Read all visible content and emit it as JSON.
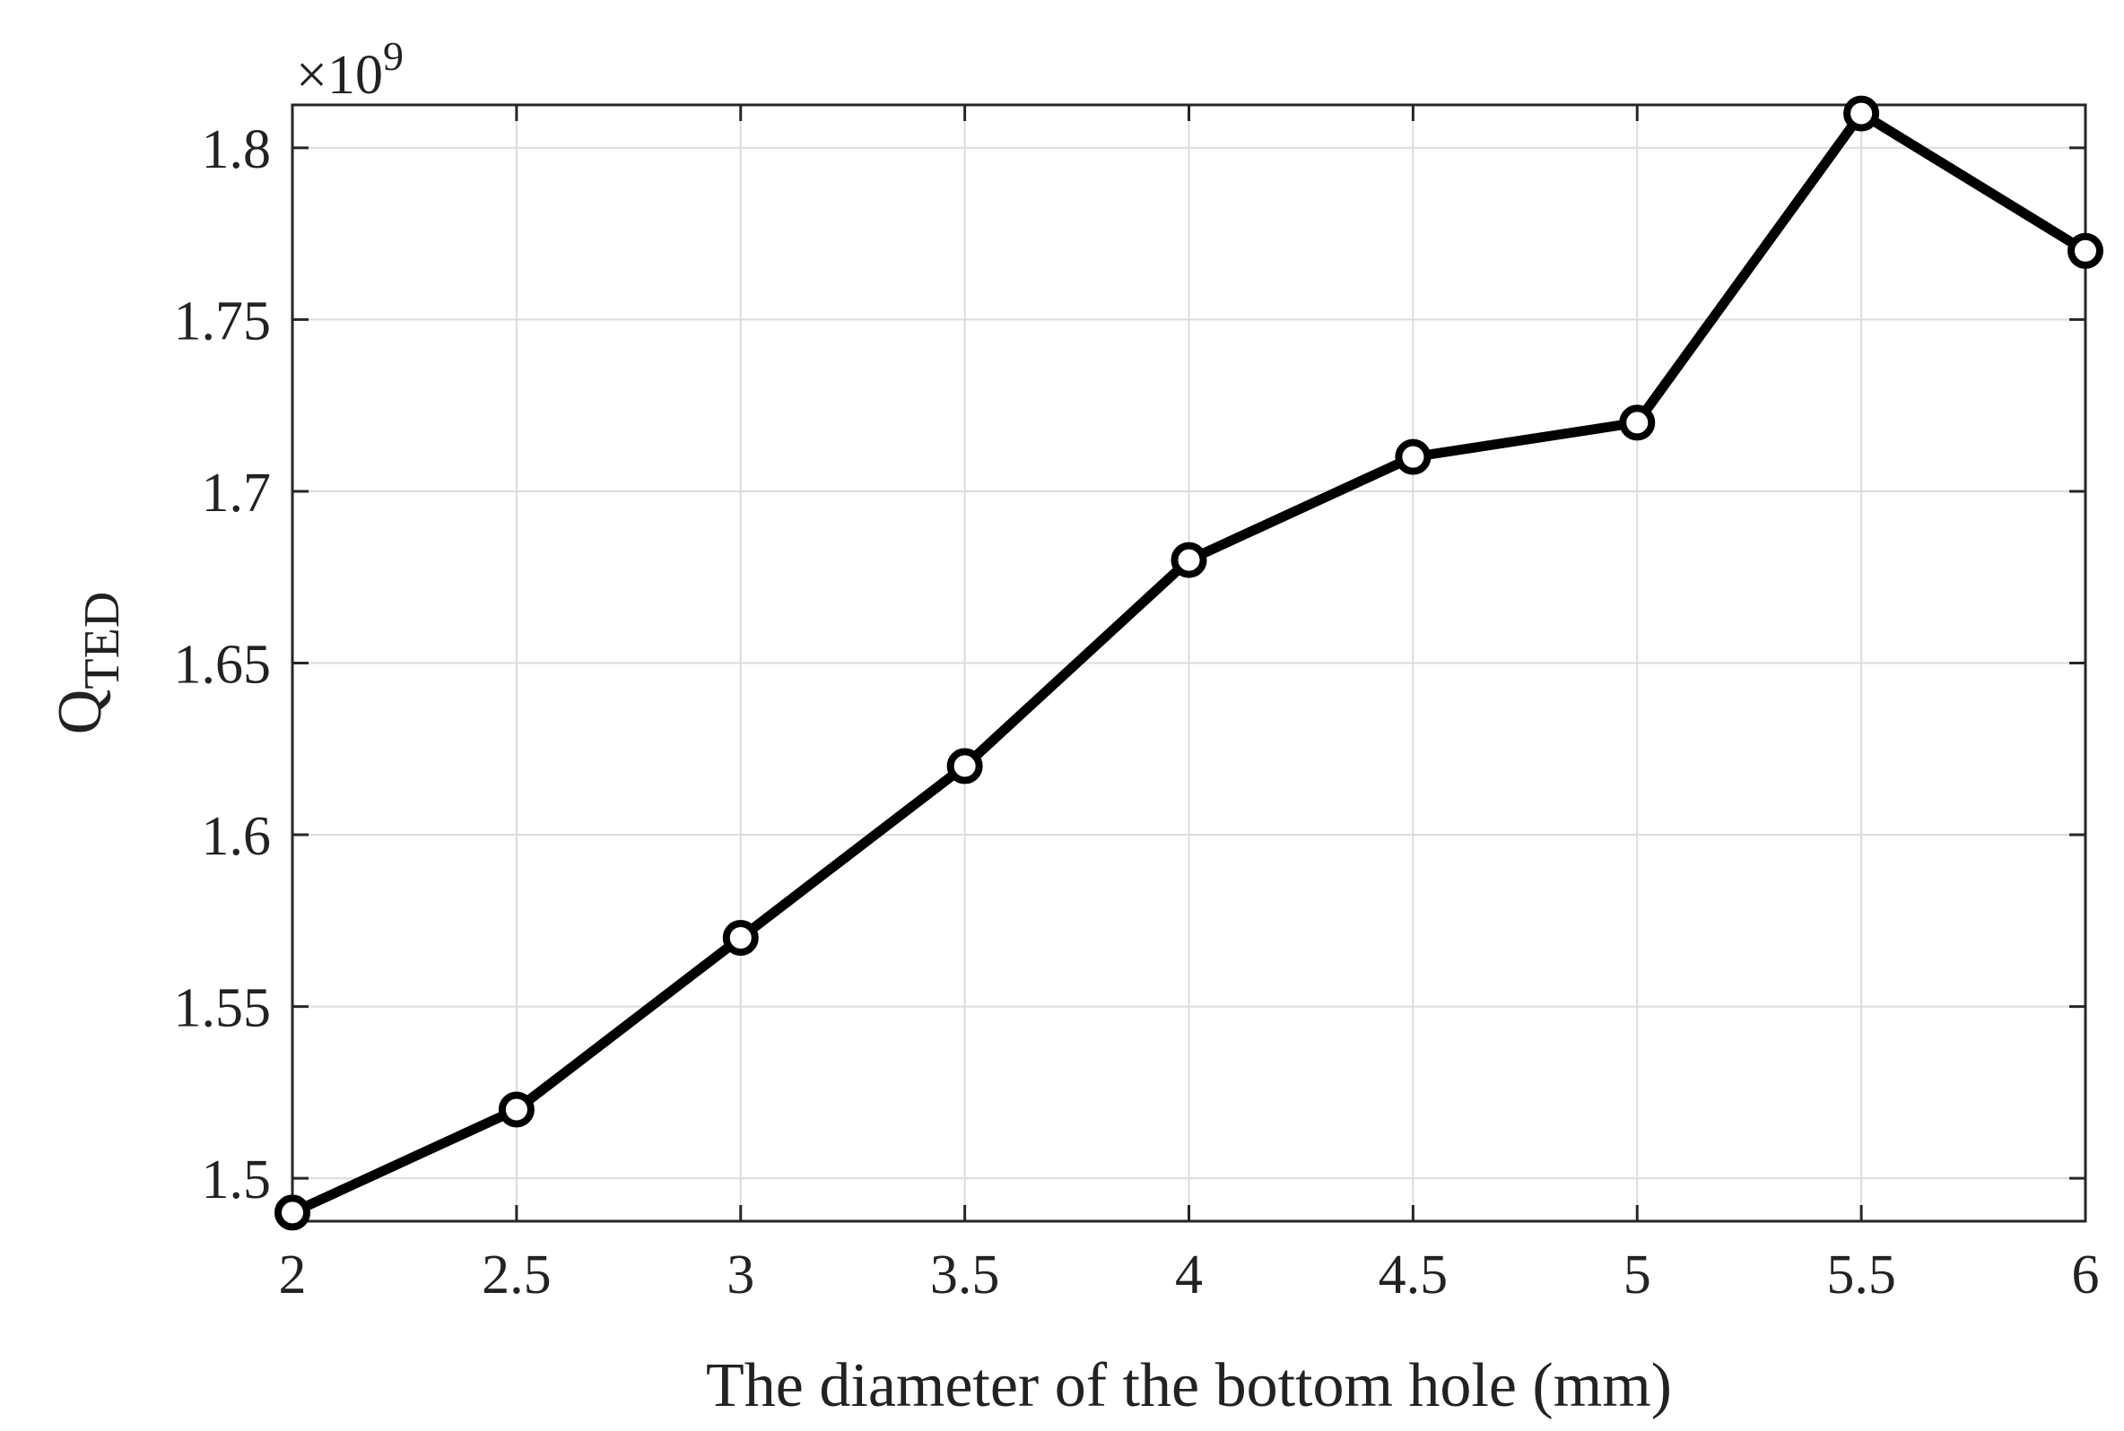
{
  "chart_data": {
    "type": "line",
    "xlabel": "The diameter of the bottom hole (mm)",
    "ylabel": "Q",
    "ylabel_subscript": "TED",
    "exponent_label": "×10",
    "exponent_power": "9",
    "xlim": [
      2,
      6
    ],
    "ylim": [
      1.4875,
      1.8125
    ],
    "xticks": [
      2,
      2.5,
      3,
      3.5,
      4,
      4.5,
      5,
      5.5,
      6
    ],
    "xtick_labels": [
      "2",
      "2.5",
      "3",
      "3.5",
      "4",
      "4.5",
      "5",
      "5.5",
      "6"
    ],
    "yticks": [
      1.5,
      1.55,
      1.6,
      1.65,
      1.7,
      1.75,
      1.8
    ],
    "ytick_labels": [
      "1.5",
      "1.55",
      "1.6",
      "1.65",
      "1.7",
      "1.75",
      "1.8"
    ],
    "grid": true,
    "series": [
      {
        "x": [
          2,
          2.5,
          3,
          3.5,
          4,
          4.5,
          5,
          5.5,
          6
        ],
        "y": [
          1.49,
          1.52,
          1.57,
          1.62,
          1.68,
          1.71,
          1.72,
          1.81,
          1.77
        ],
        "color": "#000000",
        "marker": "circle"
      }
    ]
  }
}
